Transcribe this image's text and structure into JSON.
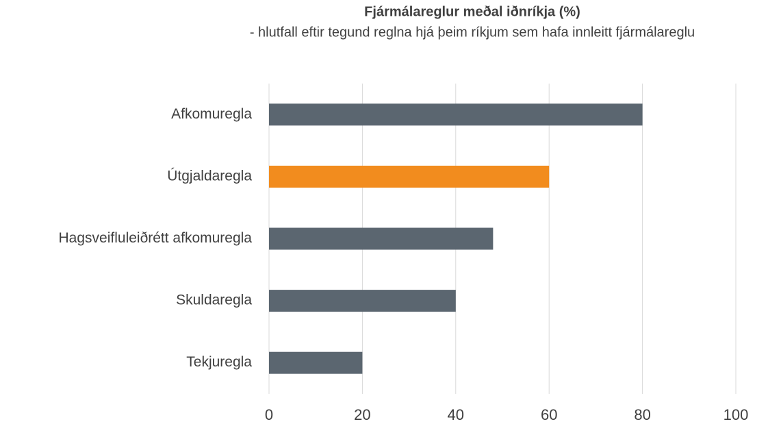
{
  "chart_data": {
    "type": "hbar",
    "title": "Fjármálareglur meðal iðnríkja (%)",
    "subtitle": "- hlutfall eftir tegund reglna hjá þeim ríkjum sem hafa innleitt fjármálareglu",
    "categories": [
      "Afkomuregla",
      "Útgjaldaregla",
      "Hagsveifluleiðrétt afkomuregla",
      "Skuldaregla",
      "Tekjuregla"
    ],
    "values": [
      80,
      60,
      48,
      40,
      20
    ],
    "colors": [
      "#5b6670",
      "#f28c1e",
      "#5b6670",
      "#5b6670",
      "#5b6670"
    ],
    "xlim": [
      0,
      100
    ],
    "xticks": [
      0,
      20,
      40,
      60,
      80,
      100
    ],
    "grid": true
  }
}
